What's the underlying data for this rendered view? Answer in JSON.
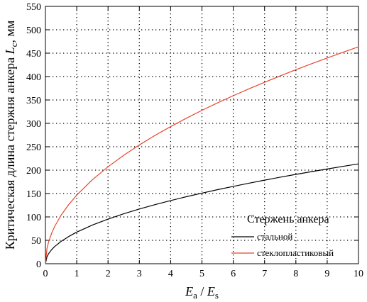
{
  "chart_data": {
    "type": "line",
    "xlabel": {
      "main": "E",
      "sub": "a",
      "sep": " / ",
      "main2": "E",
      "sub2": "s"
    },
    "ylabel": {
      "prefix": "Критическая длина стержня анкера ",
      "var": "L",
      "sub": "c",
      "suffix": ", мм"
    },
    "xlim": [
      0,
      10
    ],
    "ylim": [
      0,
      550
    ],
    "xticks": [
      0,
      1,
      2,
      3,
      4,
      5,
      6,
      7,
      8,
      9,
      10
    ],
    "yticks": [
      0,
      50,
      100,
      150,
      200,
      250,
      300,
      350,
      400,
      450,
      500,
      550
    ],
    "grid": true,
    "legend": {
      "title": "Стержень анкера",
      "placement": "bottom-right"
    },
    "series": [
      {
        "name": "стальной",
        "color": "#000000",
        "x": [
          0,
          0.05,
          0.1,
          0.2,
          0.3,
          0.5,
          0.75,
          1,
          1.5,
          2,
          2.5,
          3,
          3.5,
          4,
          4.5,
          5,
          5.5,
          6,
          6.5,
          7,
          7.5,
          8,
          8.5,
          9,
          9.5,
          10
        ],
        "y": [
          0,
          15.1,
          21.3,
          30.2,
          37.0,
          47.7,
          58.4,
          67.5,
          82.6,
          95.4,
          106.7,
          116.9,
          126.2,
          135.0,
          143.2,
          150.9,
          158.3,
          165.3,
          172.1,
          178.6,
          184.9,
          190.9,
          196.8,
          202.5,
          208.0,
          213.4
        ]
      },
      {
        "name": "стеклопластиковый",
        "color": "#e8452c",
        "x": [
          0,
          0.05,
          0.1,
          0.2,
          0.3,
          0.5,
          0.75,
          1,
          1.5,
          2,
          2.5,
          3,
          3.5,
          4,
          4.5,
          5,
          5.5,
          6,
          6.5,
          7,
          7.5,
          8,
          8.5,
          9,
          9.5,
          10
        ],
        "y": [
          0,
          32.8,
          46.3,
          65.5,
          80.3,
          103.6,
          126.9,
          146.6,
          179.5,
          207.3,
          231.7,
          253.9,
          274.2,
          293.1,
          310.9,
          327.8,
          343.8,
          359.1,
          373.7,
          387.8,
          401.4,
          414.6,
          427.4,
          439.7,
          451.8,
          463.5
        ]
      }
    ]
  }
}
